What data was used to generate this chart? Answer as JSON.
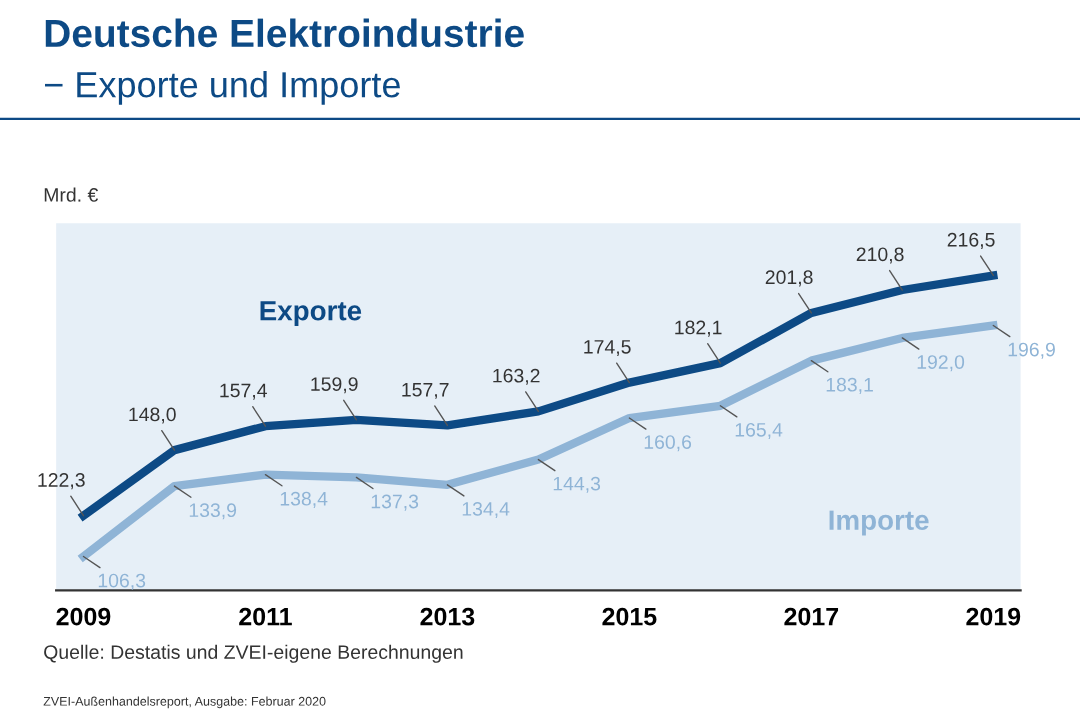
{
  "chart_data": {
    "type": "line",
    "title": "Deutsche Elektroindustrie",
    "subtitle": "− Exporte und Importe",
    "ylabel": "Mrd. €",
    "x": [
      2009,
      2010,
      2011,
      2012,
      2013,
      2014,
      2015,
      2016,
      2017,
      2018,
      2019
    ],
    "xlim": [
      2008.7,
      2019.3
    ],
    "xticks": [
      2009,
      2011,
      2013,
      2015,
      2017,
      2019
    ],
    "ylim": [
      93,
      237
    ],
    "tick_labels": "x",
    "grid": false,
    "legend": false,
    "marker": "none",
    "line_style": "solid",
    "series": [
      {
        "name": "Exporte",
        "color": "#0d4a85",
        "values": [
          122.3,
          148.0,
          157.4,
          159.9,
          157.7,
          163.2,
          174.5,
          182.1,
          201.8,
          210.8,
          216.5
        ],
        "value_labels": [
          "122,3",
          "148,0",
          "157,4",
          "159,9",
          "157,7",
          "163,2",
          "174,5",
          "182,1",
          "201,8",
          "210,8",
          "216,5"
        ]
      },
      {
        "name": "Importe",
        "color": "#8fb4d6",
        "values": [
          106.3,
          133.9,
          138.4,
          137.3,
          134.4,
          144.3,
          160.6,
          165.4,
          183.1,
          192.0,
          196.9
        ],
        "value_labels": [
          "106,3",
          "133,9",
          "138,4",
          "137,3",
          "134,4",
          "144,3",
          "160,6",
          "165,4",
          "183,1",
          "192,0",
          "196,9"
        ]
      }
    ],
    "annotations": [
      "Quelle: Destatis und ZVEI-eigene Berechnungen",
      "ZVEI-Außenhandelsreport, Ausgabe: Februar 2020"
    ]
  }
}
